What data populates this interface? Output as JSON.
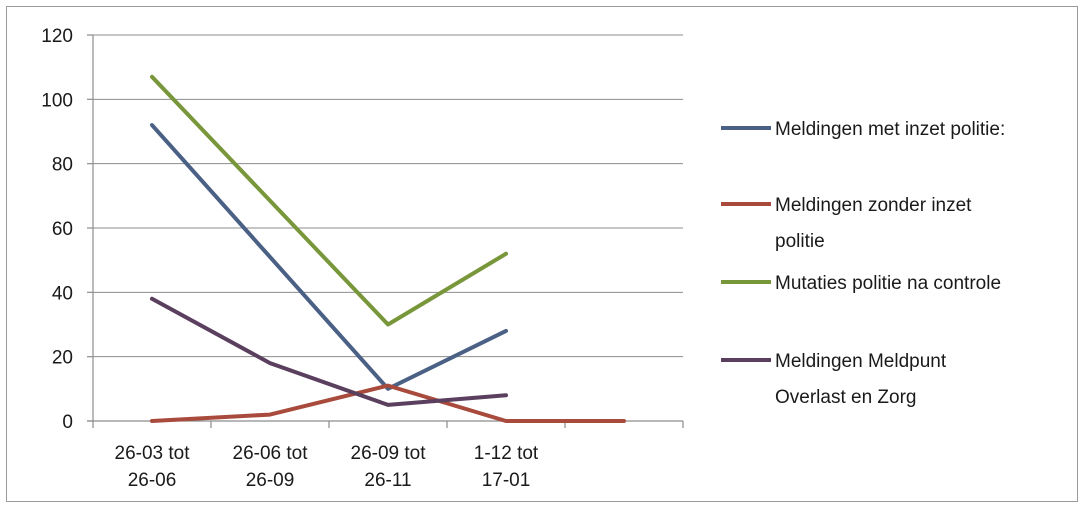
{
  "chart_data": {
    "type": "line",
    "categories": [
      [
        "26-03 tot",
        "26-06"
      ],
      [
        "26-06 tot",
        "26-09"
      ],
      [
        "26-09 tot",
        "26-11"
      ],
      [
        "1-12 tot",
        "17-01"
      ],
      [
        "",
        ""
      ]
    ],
    "series": [
      {
        "name": "Meldingen met inzet politie:",
        "name_lines": [
          "Meldingen met inzet politie:"
        ],
        "color": "#4a6084",
        "values": [
          92,
          null,
          10,
          28,
          null
        ]
      },
      {
        "name": "Meldingen zonder inzet politie",
        "name_lines": [
          "Meldingen zonder inzet",
          "politie"
        ],
        "color": "#a84a3c",
        "values": [
          0,
          2,
          11,
          0,
          0
        ]
      },
      {
        "name": "Mutaties politie na controle",
        "name_lines": [
          "Mutaties politie na controle"
        ],
        "color": "#78963a",
        "values": [
          107,
          null,
          30,
          52,
          null
        ]
      },
      {
        "name": "Meldingen Meldpunt Overlast en Zorg",
        "name_lines": [
          "Meldingen Meldpunt",
          "Overlast en Zorg"
        ],
        "color": "#5b3f5e",
        "values": [
          38,
          18,
          5,
          8,
          null
        ]
      }
    ],
    "ylim": [
      0,
      120
    ],
    "yticks": [
      "0",
      "20",
      "40",
      "60",
      "80",
      "100",
      "120"
    ],
    "grid": true,
    "legend_position": "right"
  }
}
